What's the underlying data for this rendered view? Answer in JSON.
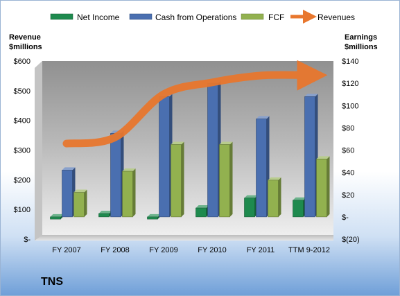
{
  "company": "TNS",
  "chart_data": {
    "type": "bar",
    "categories": [
      "FY 2007",
      "FY 2008",
      "FY 2009",
      "FY 2010",
      "FY 2011",
      "TTM 9-2012"
    ],
    "left_axis": {
      "title_line1": "Revenue",
      "title_line2": "$millions",
      "ylim": [
        0,
        600
      ],
      "ticks": [
        0,
        100,
        200,
        300,
        400,
        500,
        600
      ],
      "tick_labels": [
        "$-",
        "$100",
        "$200",
        "$300",
        "$400",
        "$500",
        "$600"
      ]
    },
    "right_axis": {
      "title_line1": "Earnings",
      "title_line2": "$millions",
      "ylim": [
        -20,
        140
      ],
      "ticks": [
        -20,
        0,
        20,
        40,
        60,
        80,
        100,
        120,
        140
      ],
      "tick_labels": [
        "$(20)",
        "$-",
        "$20",
        "$40",
        "$60",
        "$80",
        "$100",
        "$120",
        "$140"
      ]
    },
    "series": [
      {
        "name": "Net Income",
        "axis": "right",
        "kind": "bar",
        "color": "#1e8a4e",
        "values": [
          -2,
          3,
          -2,
          8,
          17,
          15
        ]
      },
      {
        "name": "Cash from Operations",
        "axis": "right",
        "kind": "bar",
        "color": "#4a6fb0",
        "values": [
          42,
          75,
          108,
          120,
          88,
          108
        ]
      },
      {
        "name": "FCF",
        "axis": "right",
        "kind": "bar",
        "color": "#92b14f",
        "values": [
          22,
          41,
          65,
          65,
          33,
          52
        ]
      },
      {
        "name": "Revenues",
        "axis": "left",
        "kind": "line",
        "color": "#e8772e",
        "values": [
          322,
          343,
          488,
          528,
          551,
          552
        ]
      }
    ],
    "legend_position": "top",
    "grid": false
  }
}
